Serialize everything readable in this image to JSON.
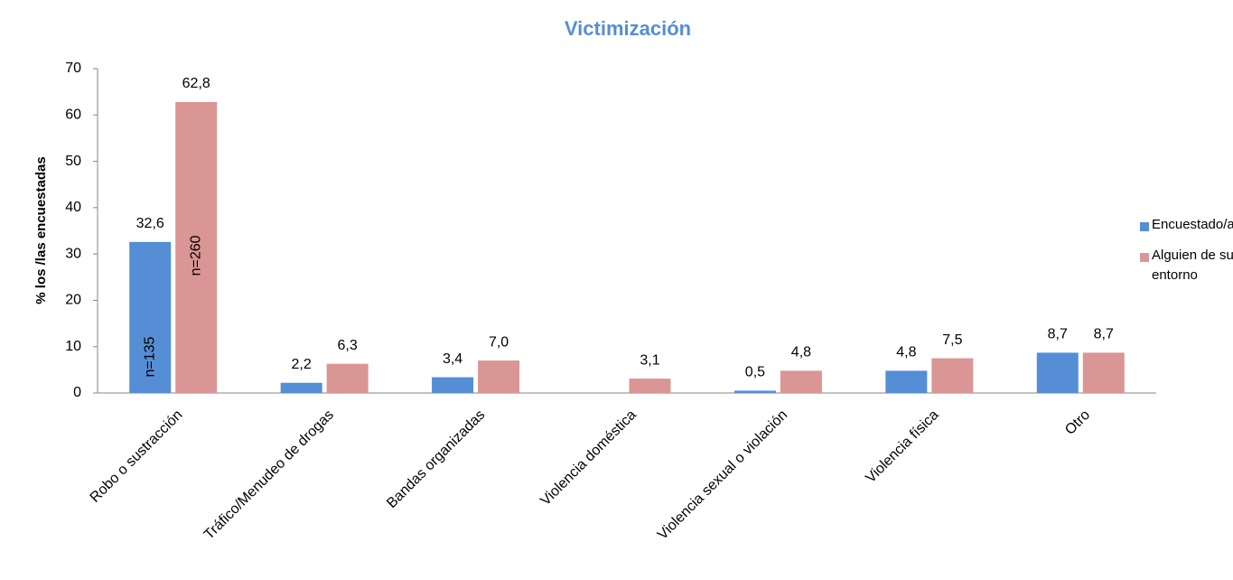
{
  "chart_data": {
    "type": "bar",
    "title": "Victimización",
    "y_label": "% los /las encuestadas",
    "categories": [
      "Robo o sustracción",
      "Tráfico/Menudeo de drogas",
      "Bandas organizadas",
      "Violencia doméstica",
      "Violencia sexual o violación",
      "Violencia física",
      "Otro"
    ],
    "series": [
      {
        "name": "Encuestado/a",
        "color": "#558ed5",
        "values": [
          32.6,
          2.2,
          3.4,
          null,
          0.5,
          4.8,
          8.7
        ],
        "value_labels": [
          "32,6",
          "2,2",
          "3,4",
          null,
          "0,5",
          "4,8",
          "8,7"
        ]
      },
      {
        "name": "Alguien de su entorno",
        "color": "#d99694",
        "values": [
          62.8,
          6.3,
          7.0,
          3.1,
          4.8,
          7.5,
          8.7
        ],
        "value_labels": [
          "62,8",
          "6,3",
          "7,0",
          "3,1",
          "4,8",
          "7,5",
          "8,7"
        ]
      }
    ],
    "annotations": [
      "n=135",
      "n=260"
    ],
    "ylim": [
      0,
      70
    ],
    "yticks": [
      0,
      10,
      20,
      30,
      40,
      50,
      60,
      70
    ],
    "grid": false,
    "legend": "right"
  }
}
